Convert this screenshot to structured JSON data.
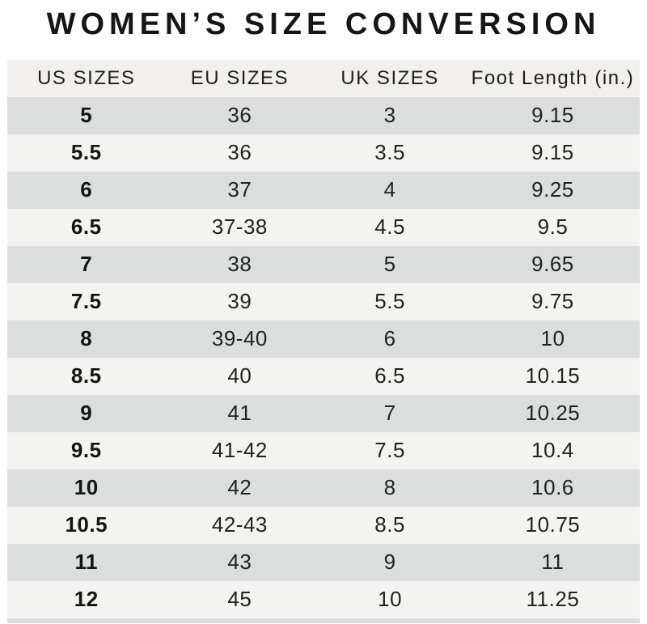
{
  "title": "WOMEN’S SIZE CONVERSION",
  "colors": {
    "row_dark": "#dcdedd",
    "row_light": "#f3f4f2",
    "header_bg": "#f1f0ee",
    "title_text": "#161616",
    "body_text": "#222222"
  },
  "table": {
    "headers": [
      "US SIZES",
      "EU SIZES",
      "UK SIZES",
      "Foot Length (in.)"
    ],
    "rows": [
      [
        "5",
        "36",
        "3",
        "9.15"
      ],
      [
        "5.5",
        "36",
        "3.5",
        "9.15"
      ],
      [
        "6",
        "37",
        "4",
        "9.25"
      ],
      [
        "6.5",
        "37-38",
        "4.5",
        "9.5"
      ],
      [
        "7",
        "38",
        "5",
        "9.65"
      ],
      [
        "7.5",
        "39",
        "5.5",
        "9.75"
      ],
      [
        "8",
        "39-40",
        "6",
        "10"
      ],
      [
        "8.5",
        "40",
        "6.5",
        "10.15"
      ],
      [
        "9",
        "41",
        "7",
        "10.25"
      ],
      [
        "9.5",
        "41-42",
        "7.5",
        "10.4"
      ],
      [
        "10",
        "42",
        "8",
        "10.6"
      ],
      [
        "10.5",
        "42-43",
        "8.5",
        "10.75"
      ],
      [
        "11",
        "43",
        "9",
        "11"
      ],
      [
        "12",
        "45",
        "10",
        "11.25"
      ]
    ]
  },
  "chart_data": {
    "type": "table",
    "title": "WOMEN’S SIZE CONVERSION",
    "columns": [
      "US SIZES",
      "EU SIZES",
      "UK SIZES",
      "Foot Length (in.)"
    ],
    "rows": [
      [
        "5",
        "36",
        "3",
        "9.15"
      ],
      [
        "5.5",
        "36",
        "3.5",
        "9.15"
      ],
      [
        "6",
        "37",
        "4",
        "9.25"
      ],
      [
        "6.5",
        "37-38",
        "4.5",
        "9.5"
      ],
      [
        "7",
        "38",
        "5",
        "9.65"
      ],
      [
        "7.5",
        "39",
        "5.5",
        "9.75"
      ],
      [
        "8",
        "39-40",
        "6",
        "10"
      ],
      [
        "8.5",
        "40",
        "6.5",
        "10.15"
      ],
      [
        "9",
        "41",
        "7",
        "10.25"
      ],
      [
        "9.5",
        "41-42",
        "7.5",
        "10.4"
      ],
      [
        "10",
        "42",
        "8",
        "10.6"
      ],
      [
        "10.5",
        "42-43",
        "8.5",
        "10.75"
      ],
      [
        "11",
        "43",
        "9",
        "11"
      ],
      [
        "12",
        "45",
        "10",
        "11.25"
      ]
    ],
    "layout_hints": {
      "row_striping": [
        "#dcdedd",
        "#f3f4f2"
      ],
      "header_background": "#f1f0ee",
      "first_column_bold": true,
      "grid": "none"
    }
  }
}
